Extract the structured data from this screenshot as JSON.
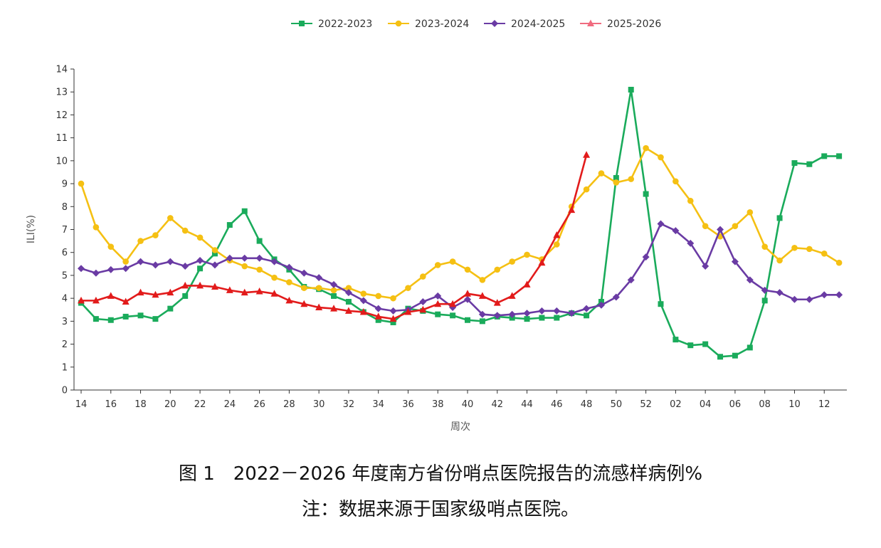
{
  "caption": {
    "figure": "图 1　2022－2026 年度南方省份哨点医院报告的流感样病例%",
    "note": "注：数据来源于国家级哨点医院。"
  },
  "chart_data": {
    "type": "line",
    "title": "",
    "xlabel": "周次",
    "ylabel": "ILI(%)",
    "ylim": [
      0,
      14
    ],
    "yticks": [
      0,
      1,
      2,
      3,
      4,
      5,
      6,
      7,
      8,
      9,
      10,
      11,
      12,
      13,
      14
    ],
    "grid": false,
    "legend_position": "top-center",
    "x": [
      "14",
      "15",
      "16",
      "17",
      "18",
      "19",
      "20",
      "21",
      "22",
      "23",
      "24",
      "25",
      "26",
      "27",
      "28",
      "29",
      "30",
      "31",
      "32",
      "33",
      "34",
      "35",
      "36",
      "37",
      "38",
      "39",
      "40",
      "41",
      "42",
      "43",
      "44",
      "45",
      "46",
      "47",
      "48",
      "49",
      "50",
      "51",
      "52",
      "01",
      "02",
      "03",
      "04",
      "05",
      "06",
      "07",
      "08",
      "09",
      "10",
      "11",
      "12",
      "13"
    ],
    "tick_labels": [
      "14",
      "16",
      "18",
      "20",
      "22",
      "24",
      "26",
      "28",
      "30",
      "32",
      "34",
      "36",
      "38",
      "40",
      "42",
      "44",
      "46",
      "48",
      "50",
      "52",
      "02",
      "04",
      "06",
      "08",
      "10",
      "12"
    ],
    "series": [
      {
        "name": "2022-2023",
        "color": "#1aab5b",
        "marker": "square",
        "values": [
          3.8,
          3.1,
          3.05,
          3.2,
          3.25,
          3.1,
          3.55,
          4.1,
          5.3,
          5.95,
          7.2,
          7.8,
          6.5,
          5.7,
          5.25,
          4.5,
          4.4,
          4.1,
          3.85,
          3.4,
          3.05,
          2.95,
          3.55,
          3.45,
          3.3,
          3.25,
          3.05,
          3.0,
          3.2,
          3.15,
          3.1,
          3.15,
          3.15,
          3.35,
          3.25,
          3.85,
          9.25,
          13.1,
          8.55,
          3.75,
          2.2,
          1.95,
          2.0,
          1.45,
          1.5,
          1.85,
          3.9,
          7.5,
          9.9,
          9.85,
          10.2,
          10.2
        ]
      },
      {
        "name": "2023-2024",
        "color": "#f5c013",
        "marker": "circle",
        "values": [
          9.0,
          7.1,
          6.25,
          5.6,
          6.5,
          6.75,
          7.5,
          6.95,
          6.65,
          6.1,
          5.65,
          5.4,
          5.25,
          4.9,
          4.7,
          4.45,
          4.45,
          4.35,
          4.45,
          4.2,
          4.1,
          4.0,
          4.45,
          4.95,
          5.45,
          5.6,
          5.25,
          4.8,
          5.25,
          5.6,
          5.9,
          5.7,
          6.35,
          8.0,
          8.75,
          9.45,
          9.05,
          9.2,
          10.55,
          10.15,
          9.1,
          8.25,
          7.15,
          6.7,
          7.15,
          7.75,
          6.25,
          5.65,
          6.2,
          6.15,
          5.95,
          5.55
        ]
      },
      {
        "name": "2024-2025",
        "color": "#6a3ba4",
        "marker": "diamond",
        "values": [
          5.3,
          5.1,
          5.25,
          5.3,
          5.6,
          5.45,
          5.6,
          5.4,
          5.65,
          5.45,
          5.75,
          5.75,
          5.75,
          5.6,
          5.35,
          5.1,
          4.9,
          4.6,
          4.25,
          3.9,
          3.55,
          3.45,
          3.5,
          3.85,
          4.1,
          3.6,
          3.95,
          3.3,
          3.25,
          3.3,
          3.35,
          3.45,
          3.45,
          3.35,
          3.55,
          3.7,
          4.05,
          4.8,
          5.8,
          7.25,
          6.95,
          6.4,
          5.4,
          7.0,
          5.6,
          4.8,
          4.35,
          4.25,
          3.95,
          3.95,
          4.15,
          4.15
        ]
      },
      {
        "name": "2025-2026",
        "color": "#e21b1b",
        "marker": "triangle",
        "legend_color": "#f06b7f",
        "values": [
          3.9,
          3.9,
          4.1,
          3.85,
          4.25,
          4.15,
          4.25,
          4.55,
          4.55,
          4.5,
          4.35,
          4.25,
          4.3,
          4.2,
          3.9,
          3.75,
          3.6,
          3.55,
          3.45,
          3.4,
          3.2,
          3.1,
          3.4,
          3.5,
          3.75,
          3.75,
          4.2,
          4.1,
          3.8,
          4.1,
          4.6,
          5.55,
          6.75,
          7.85,
          10.25,
          null,
          null,
          null,
          null,
          null,
          null,
          null,
          null,
          null,
          null,
          null,
          null,
          null,
          null,
          null,
          null,
          null
        ]
      }
    ]
  }
}
